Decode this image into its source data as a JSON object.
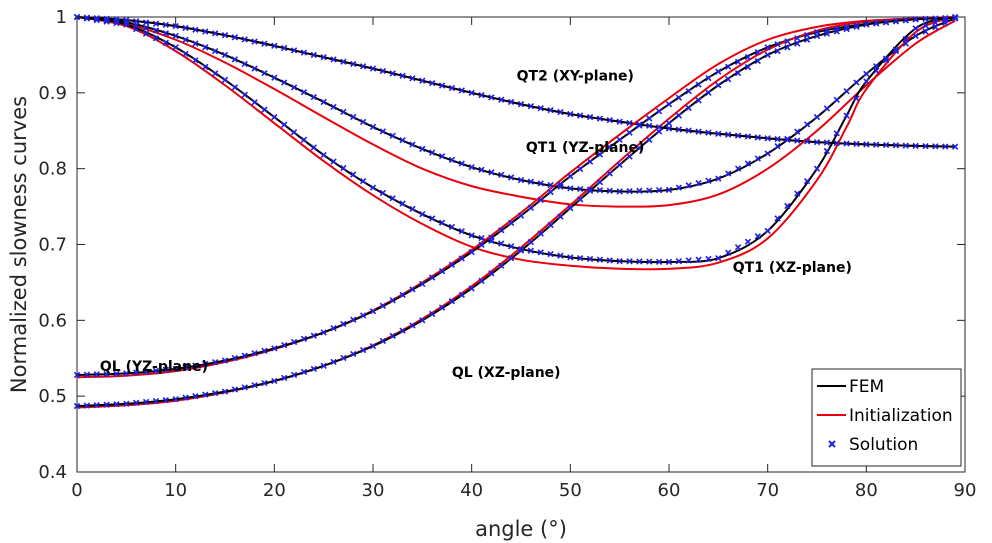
{
  "chart_data": {
    "type": "line",
    "title": "",
    "xlabel": "angle (°)",
    "ylabel": "Normalized slowness curves",
    "xlim": [
      0,
      90
    ],
    "ylim": [
      0.4,
      1
    ],
    "xticks": [
      0,
      10,
      20,
      30,
      40,
      50,
      60,
      70,
      80,
      90
    ],
    "xtick_labels": [
      "0",
      "10",
      "20",
      "30",
      "40",
      "50",
      "60",
      "70",
      "80",
      "90"
    ],
    "yticks": [
      0.4,
      0.5,
      0.6,
      0.7,
      0.8,
      0.9,
      1
    ],
    "ytick_labels": [
      "0.4",
      "0.5",
      "0.6",
      "0.7",
      "0.8",
      "0.9",
      "1"
    ],
    "grid": false,
    "legend_position": "bottom-right",
    "legend": [
      {
        "label": "FEM",
        "color": "#000000",
        "style": "line"
      },
      {
        "label": "Initialization",
        "color": "#e8000b",
        "style": "line"
      },
      {
        "label": "Solution",
        "color": "#1f1fe0",
        "style": "marker-x"
      }
    ],
    "colors": {
      "fem": "#000000",
      "initialization": "#e8000b",
      "solution": "#1f1fe0"
    },
    "annotations": [
      {
        "text": "QT2 (XY-plane)",
        "x": 50.5,
        "y": 0.916
      },
      {
        "text": "QT1 (YZ-plane)",
        "x": 51.5,
        "y": 0.822
      },
      {
        "text": "QT1 (XZ-plane)",
        "x": 72.5,
        "y": 0.664
      },
      {
        "text": "QL (YZ-plane)",
        "x": 7.8,
        "y": 0.533
      },
      {
        "text": "QL (XZ-plane)",
        "x": 43.5,
        "y": 0.525
      }
    ],
    "curves": [
      {
        "name": "QT2 (XY-plane)",
        "x": [
          0,
          5,
          10,
          15,
          20,
          25,
          30,
          35,
          40,
          45,
          50,
          55,
          60,
          65,
          70,
          75,
          80,
          85,
          89
        ],
        "fem": [
          1.0,
          0.996,
          0.988,
          0.976,
          0.962,
          0.947,
          0.932,
          0.916,
          0.9,
          0.885,
          0.872,
          0.862,
          0.853,
          0.846,
          0.84,
          0.835,
          0.832,
          0.83,
          0.829
        ],
        "init": [
          1.0,
          0.996,
          0.988,
          0.976,
          0.962,
          0.947,
          0.932,
          0.916,
          0.9,
          0.885,
          0.872,
          0.862,
          0.853,
          0.846,
          0.84,
          0.835,
          0.832,
          0.83,
          0.829
        ]
      },
      {
        "name": "QT1 (YZ-plane)",
        "x": [
          0,
          5,
          10,
          15,
          20,
          25,
          30,
          35,
          40,
          45,
          50,
          55,
          60,
          65,
          70,
          75,
          80,
          85,
          89
        ],
        "fem": [
          1.0,
          0.993,
          0.975,
          0.95,
          0.92,
          0.888,
          0.855,
          0.826,
          0.802,
          0.785,
          0.774,
          0.77,
          0.772,
          0.787,
          0.82,
          0.868,
          0.925,
          0.975,
          0.998
        ],
        "init": [
          1.0,
          0.991,
          0.97,
          0.94,
          0.905,
          0.868,
          0.832,
          0.8,
          0.777,
          0.763,
          0.753,
          0.75,
          0.752,
          0.766,
          0.8,
          0.85,
          0.91,
          0.965,
          0.995
        ]
      },
      {
        "name": "QT1 (XZ-plane)",
        "x": [
          0,
          5,
          10,
          15,
          20,
          25,
          30,
          35,
          40,
          45,
          50,
          55,
          60,
          65,
          70,
          75,
          78,
          80,
          85,
          89
        ],
        "fem": [
          1.0,
          0.99,
          0.96,
          0.917,
          0.868,
          0.818,
          0.775,
          0.74,
          0.712,
          0.694,
          0.683,
          0.678,
          0.677,
          0.682,
          0.718,
          0.8,
          0.87,
          0.915,
          0.985,
          1.0
        ],
        "init": [
          1.0,
          0.988,
          0.955,
          0.91,
          0.86,
          0.81,
          0.765,
          0.727,
          0.697,
          0.68,
          0.672,
          0.668,
          0.668,
          0.676,
          0.708,
          0.785,
          0.855,
          0.905,
          0.98,
          1.0
        ]
      },
      {
        "name": "QL (YZ-plane)",
        "x": [
          0,
          5,
          10,
          15,
          20,
          25,
          30,
          35,
          40,
          45,
          50,
          55,
          60,
          65,
          70,
          75,
          80,
          85,
          89
        ],
        "fem": [
          0.528,
          0.53,
          0.536,
          0.547,
          0.563,
          0.584,
          0.612,
          0.648,
          0.69,
          0.738,
          0.79,
          0.838,
          0.885,
          0.928,
          0.96,
          0.98,
          0.991,
          0.997,
          0.999
        ],
        "init": [
          0.525,
          0.527,
          0.533,
          0.545,
          0.562,
          0.584,
          0.613,
          0.65,
          0.693,
          0.742,
          0.795,
          0.845,
          0.893,
          0.938,
          0.97,
          0.987,
          0.995,
          0.998,
          1.0
        ]
      },
      {
        "name": "QL (XZ-plane)",
        "x": [
          0,
          5,
          10,
          15,
          20,
          25,
          30,
          35,
          40,
          45,
          50,
          55,
          60,
          65,
          70,
          75,
          80,
          85,
          89
        ],
        "fem": [
          0.487,
          0.49,
          0.496,
          0.506,
          0.52,
          0.54,
          0.566,
          0.6,
          0.642,
          0.692,
          0.748,
          0.805,
          0.86,
          0.91,
          0.95,
          0.975,
          0.99,
          0.997,
          0.999
        ],
        "init": [
          0.485,
          0.488,
          0.494,
          0.505,
          0.52,
          0.54,
          0.567,
          0.602,
          0.645,
          0.696,
          0.752,
          0.81,
          0.866,
          0.917,
          0.957,
          0.982,
          0.994,
          0.998,
          1.0
        ]
      }
    ]
  }
}
